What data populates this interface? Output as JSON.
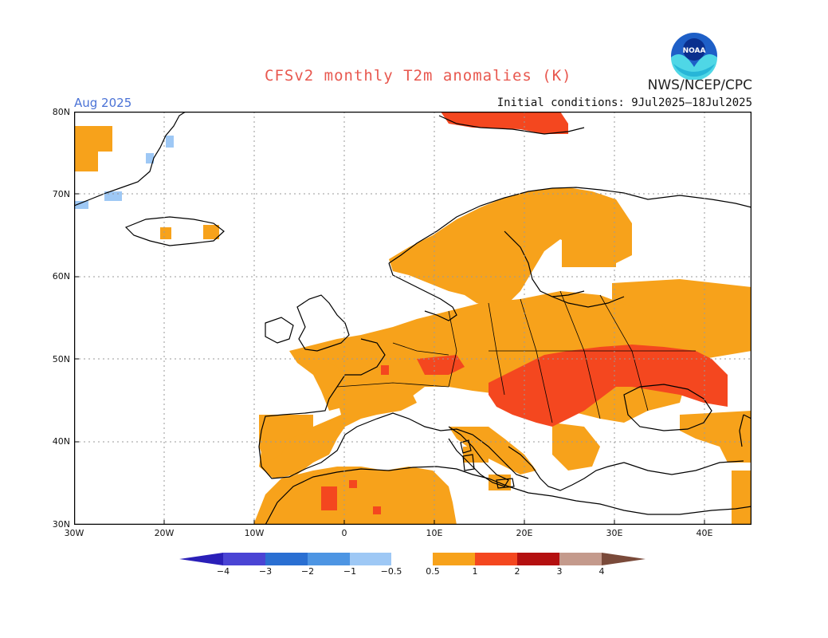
{
  "header": {
    "title": "CFSv2 monthly T2m anomalies (K)",
    "agency": "NWS/NCEP/CPC",
    "month": "Aug 2025",
    "initial_conditions": "Initial conditions: 9Jul2025–18Jul2025"
  },
  "logo": {
    "text": "NOAA",
    "icon": "noaa-logo-icon"
  },
  "map": {
    "lat_labels": [
      "80N",
      "70N",
      "60N",
      "50N",
      "40N",
      "30N"
    ],
    "lon_labels": [
      "30W",
      "20W",
      "10W",
      "0",
      "10E",
      "20E",
      "30E",
      "40E"
    ],
    "lon_range": [
      -30,
      45
    ],
    "lat_range": [
      30,
      80
    ],
    "grid": true
  },
  "legend": {
    "labels": [
      "−4",
      "−3",
      "−2",
      "−1",
      "−0.5",
      "0.5",
      "1",
      "2",
      "3",
      "4"
    ],
    "colors": [
      "#2a1fb8",
      "#4a44d4",
      "#2a6fd2",
      "#4d95e3",
      "#9ec8f5",
      "#ffffff",
      "#f7a21b",
      "#f4471f",
      "#b41010",
      "#c49a8c",
      "#7a4a3a"
    ]
  },
  "colors": {
    "anomaly_05_1": "#f7a21b",
    "anomaly_1_2": "#f4471f",
    "anomaly_2_3": "#b41010",
    "anomaly_neg_05_1": "#9ec8f5",
    "coastline": "#000000",
    "title": "#e8584f"
  }
}
